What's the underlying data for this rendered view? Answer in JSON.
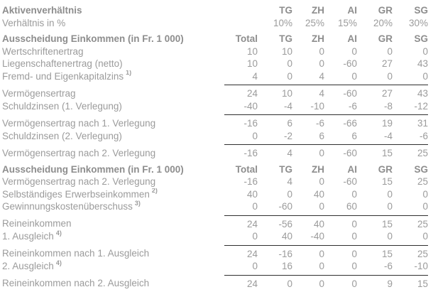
{
  "page": {
    "colors": {
      "text": "#9b9b9b",
      "heading": "#8d8d8d",
      "rule": "#2f2f2f",
      "bg": "#ffffff"
    }
  },
  "table": {
    "rows": [
      {
        "type": "header",
        "label": "Aktivenverhältnis",
        "values": [
          "",
          "TG",
          "ZH",
          "AI",
          "GR",
          "SG"
        ]
      },
      {
        "type": "normal",
        "label": "Verhältnis in %",
        "values": [
          "",
          "10%",
          "25%",
          "15%",
          "20%",
          "30%"
        ]
      },
      {
        "type": "header",
        "label": "Ausscheidung Einkommen (in Fr. 1 000)",
        "values": [
          "Total",
          "TG",
          "ZH",
          "AI",
          "GR",
          "SG"
        ]
      },
      {
        "type": "normal",
        "label": "Wertschriftenertrag",
        "values": [
          "10",
          "10",
          "0",
          "0",
          "0",
          "0"
        ]
      },
      {
        "type": "normal",
        "label": "Liegenschaftenertrag (netto)",
        "values": [
          "10",
          "0",
          "0",
          "-60",
          "27",
          "43"
        ]
      },
      {
        "type": "sum",
        "label": "Fremd- und Eigenkapitalzins",
        "sup": "1)",
        "values": [
          "4",
          "0",
          "4",
          "0",
          "0",
          "0"
        ]
      },
      {
        "type": "result",
        "label": "Vermögensertrag",
        "values": [
          "24",
          "10",
          "4",
          "-60",
          "27",
          "43"
        ]
      },
      {
        "type": "sum",
        "label": "Schuldzinsen (1. Verlegung)",
        "values": [
          "-40",
          "-4",
          "-10",
          "-6",
          "-8",
          "-12"
        ]
      },
      {
        "type": "result",
        "label": "Vermögensertrag nach 1. Verlegung",
        "values": [
          "-16",
          "6",
          "-6",
          "-66",
          "19",
          "31"
        ]
      },
      {
        "type": "sum",
        "label": "Schuldzinsen (2. Verlegung)",
        "values": [
          "0",
          "-2",
          "6",
          "6",
          "-4",
          "-6"
        ]
      },
      {
        "type": "result",
        "label": "Vermögensertrag nach 2. Verlegung",
        "values": [
          "-16",
          "4",
          "0",
          "-60",
          "15",
          "25"
        ]
      },
      {
        "type": "header",
        "label": "Ausscheidung Einkommen (in Fr. 1 000)",
        "values": [
          "Total",
          "TG",
          "ZH",
          "AI",
          "GR",
          "SG"
        ]
      },
      {
        "type": "normal",
        "label": "Vermögensertrag nach 2. Verlegung",
        "values": [
          "-16",
          "4",
          "0",
          "-60",
          "15",
          "25"
        ]
      },
      {
        "type": "normal",
        "label": "Selbständiges Erwerbseinkommen",
        "sup": "2)",
        "values": [
          "40",
          "0",
          "40",
          "0",
          "0",
          "0"
        ]
      },
      {
        "type": "sum",
        "label": "Gewinnungskostenüberschuss",
        "sup": "3)",
        "values": [
          "0",
          "-60",
          "0",
          "60",
          "0",
          "0"
        ]
      },
      {
        "type": "result",
        "label": "Reineinkommen",
        "values": [
          "24",
          "-56",
          "40",
          "0",
          "15",
          "25"
        ]
      },
      {
        "type": "sum",
        "label": "1. Ausgleich",
        "sup": "4)",
        "values": [
          "0",
          "40",
          "-40",
          "0",
          "0",
          "0"
        ]
      },
      {
        "type": "result",
        "label": "Reineinkommen nach 1. Ausgleich",
        "values": [
          "24",
          "-16",
          "0",
          "0",
          "15",
          "25"
        ]
      },
      {
        "type": "sum",
        "label": "2. Ausgleich",
        "sup": "4)",
        "values": [
          "0",
          "16",
          "0",
          "0",
          "-6",
          "-10"
        ]
      },
      {
        "type": "result",
        "label": "Reineinkommen nach 2. Ausgleich",
        "values": [
          "24",
          "0",
          "0",
          "0",
          "9",
          "15"
        ]
      }
    ]
  }
}
